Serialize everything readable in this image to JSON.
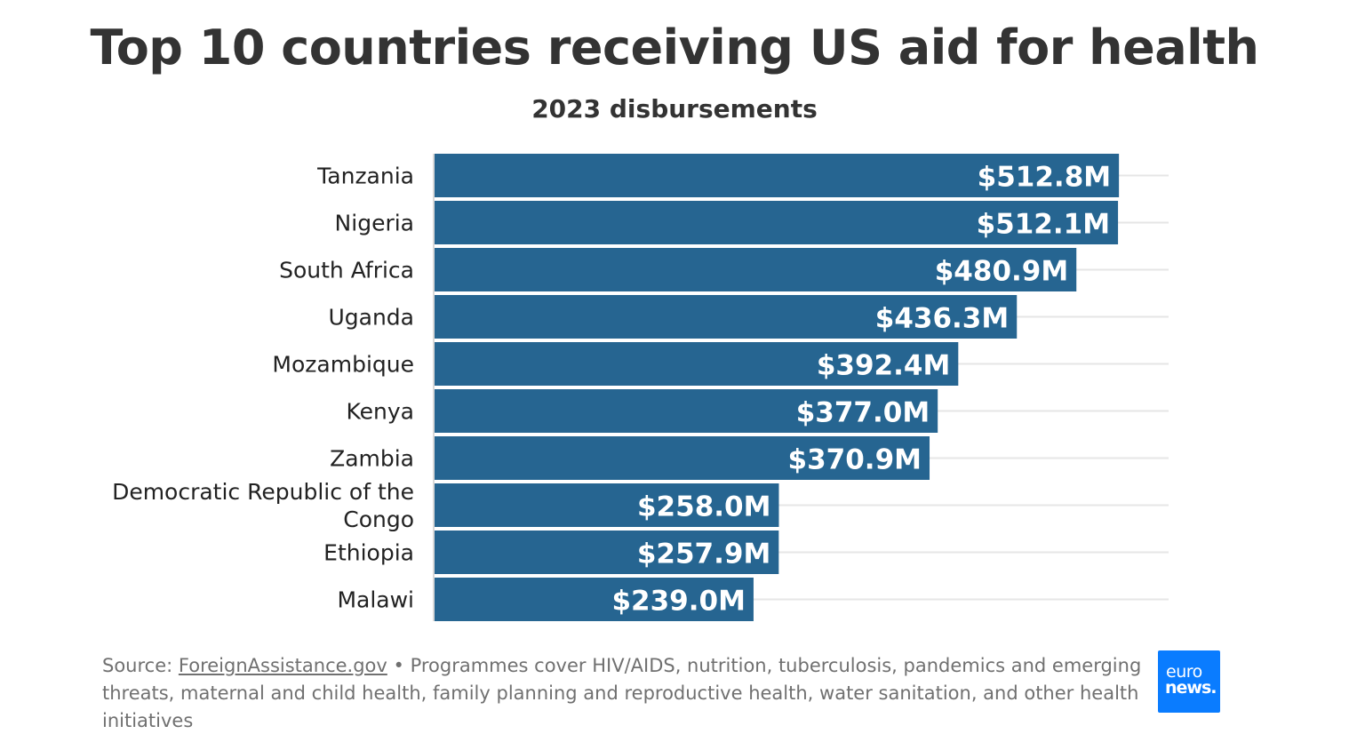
{
  "title": "Top 10 countries receiving US aid for health",
  "subtitle": "2023 disbursements",
  "chart_data": {
    "type": "bar",
    "orientation": "horizontal",
    "title": "Top 10 countries receiving US aid for health",
    "subtitle": "2023 disbursements",
    "categories": [
      "Tanzania",
      "Nigeria",
      "South Africa",
      "Uganda",
      "Mozambique",
      "Kenya",
      "Zambia",
      "Democratic Republic of the Congo",
      "Ethiopia",
      "Malawi"
    ],
    "category_lines": [
      [
        "Tanzania"
      ],
      [
        "Nigeria"
      ],
      [
        "South Africa"
      ],
      [
        "Uganda"
      ],
      [
        "Mozambique"
      ],
      [
        "Kenya"
      ],
      [
        "Zambia"
      ],
      [
        "Democratic Republic of the",
        "Congo"
      ],
      [
        "Ethiopia"
      ],
      [
        "Malawi"
      ]
    ],
    "values": [
      512.8,
      512.1,
      480.9,
      436.3,
      392.4,
      377.0,
      370.9,
      258.0,
      257.9,
      239.0
    ],
    "value_labels": [
      "$512.8M",
      "$512.1M",
      "$480.9M",
      "$436.3M",
      "$392.4M",
      "$377.0M",
      "$370.9M",
      "$258.0M",
      "$257.9M",
      "$239.0M"
    ],
    "unit": "USD millions",
    "xlim": [
      0,
      550
    ],
    "xlabel": "",
    "ylabel": "",
    "grid": true,
    "legend": "none",
    "bar_color": "#266591"
  },
  "footer": {
    "source_prefix": "Source: ",
    "source_link": "ForeignAssistance.gov",
    "note": " • Programmes cover HIV/AIDS, nutrition, tuberculosis, pandemics and emerging threats, maternal and child health, family planning and reproductive health, water sanitation, and other health initiatives"
  },
  "logo": {
    "line1": "euro",
    "line2": "news."
  }
}
